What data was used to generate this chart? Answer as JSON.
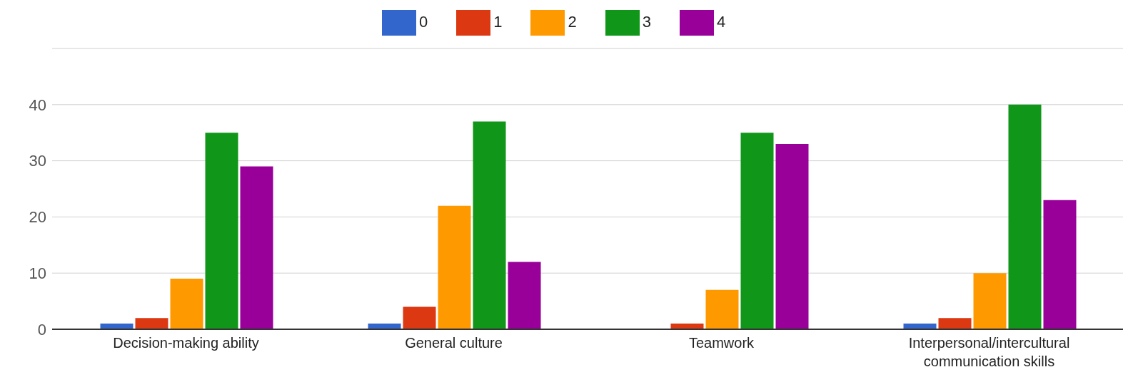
{
  "chart_data": {
    "type": "bar",
    "categories": [
      "Decision-making ability",
      "General culture",
      "Teamwork",
      "Interpersonal/intercultural communication skills"
    ],
    "series": [
      {
        "name": "0",
        "color": "#3366cc",
        "values": [
          1,
          1,
          0,
          1
        ]
      },
      {
        "name": "1",
        "color": "#dc3912",
        "values": [
          2,
          4,
          1,
          2
        ]
      },
      {
        "name": "2",
        "color": "#ff9900",
        "values": [
          9,
          22,
          7,
          10
        ]
      },
      {
        "name": "3",
        "color": "#109618",
        "values": [
          35,
          37,
          35,
          40
        ]
      },
      {
        "name": "4",
        "color": "#990099",
        "values": [
          29,
          12,
          33,
          23
        ]
      }
    ],
    "ylim": [
      0,
      50
    ],
    "yticks": [
      0,
      10,
      20,
      30,
      40,
      {
        "value": 50,
        "label": null
      }
    ],
    "grid": "y",
    "legend": "top"
  }
}
